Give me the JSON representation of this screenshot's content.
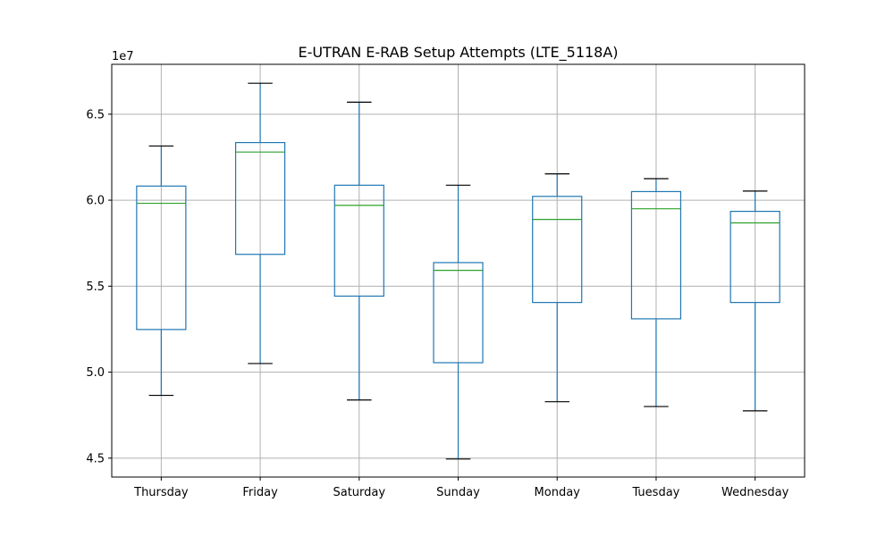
{
  "chart_data": {
    "type": "boxplot",
    "title": "E-UTRAN E-RAB Setup Attempts (LTE_5118A)",
    "xlabel": "",
    "ylabel": "",
    "y_offset_label": "1e7",
    "y_scale_factor": 10000000,
    "ylim": [
      43900000,
      67900000
    ],
    "yticks": [
      45000000,
      50000000,
      55000000,
      60000000,
      65000000
    ],
    "ytick_labels": [
      "4.5",
      "5.0",
      "5.5",
      "6.0",
      "6.5"
    ],
    "grid": true,
    "colors": {
      "box": "#1f77b4",
      "median": "#2ca02c",
      "whisker_cap": "#000000",
      "grid": "#b0b0b0"
    },
    "categories": [
      "Thursday",
      "Friday",
      "Saturday",
      "Sunday",
      "Monday",
      "Tuesday",
      "Wednesday"
    ],
    "boxes": [
      {
        "min": 48650000,
        "q1": 52480000,
        "median": 59820000,
        "q3": 60820000,
        "max": 63150000
      },
      {
        "min": 50500000,
        "q1": 56850000,
        "median": 62800000,
        "q3": 63350000,
        "max": 66800000
      },
      {
        "min": 48380000,
        "q1": 54420000,
        "median": 59700000,
        "q3": 60870000,
        "max": 65700000
      },
      {
        "min": 44950000,
        "q1": 50550000,
        "median": 55920000,
        "q3": 56370000,
        "max": 60870000
      },
      {
        "min": 48280000,
        "q1": 54050000,
        "median": 58880000,
        "q3": 60220000,
        "max": 61530000
      },
      {
        "min": 48000000,
        "q1": 53100000,
        "median": 59500000,
        "q3": 60500000,
        "max": 61250000
      },
      {
        "min": 47750000,
        "q1": 54050000,
        "median": 58680000,
        "q3": 59350000,
        "max": 60530000
      }
    ]
  }
}
